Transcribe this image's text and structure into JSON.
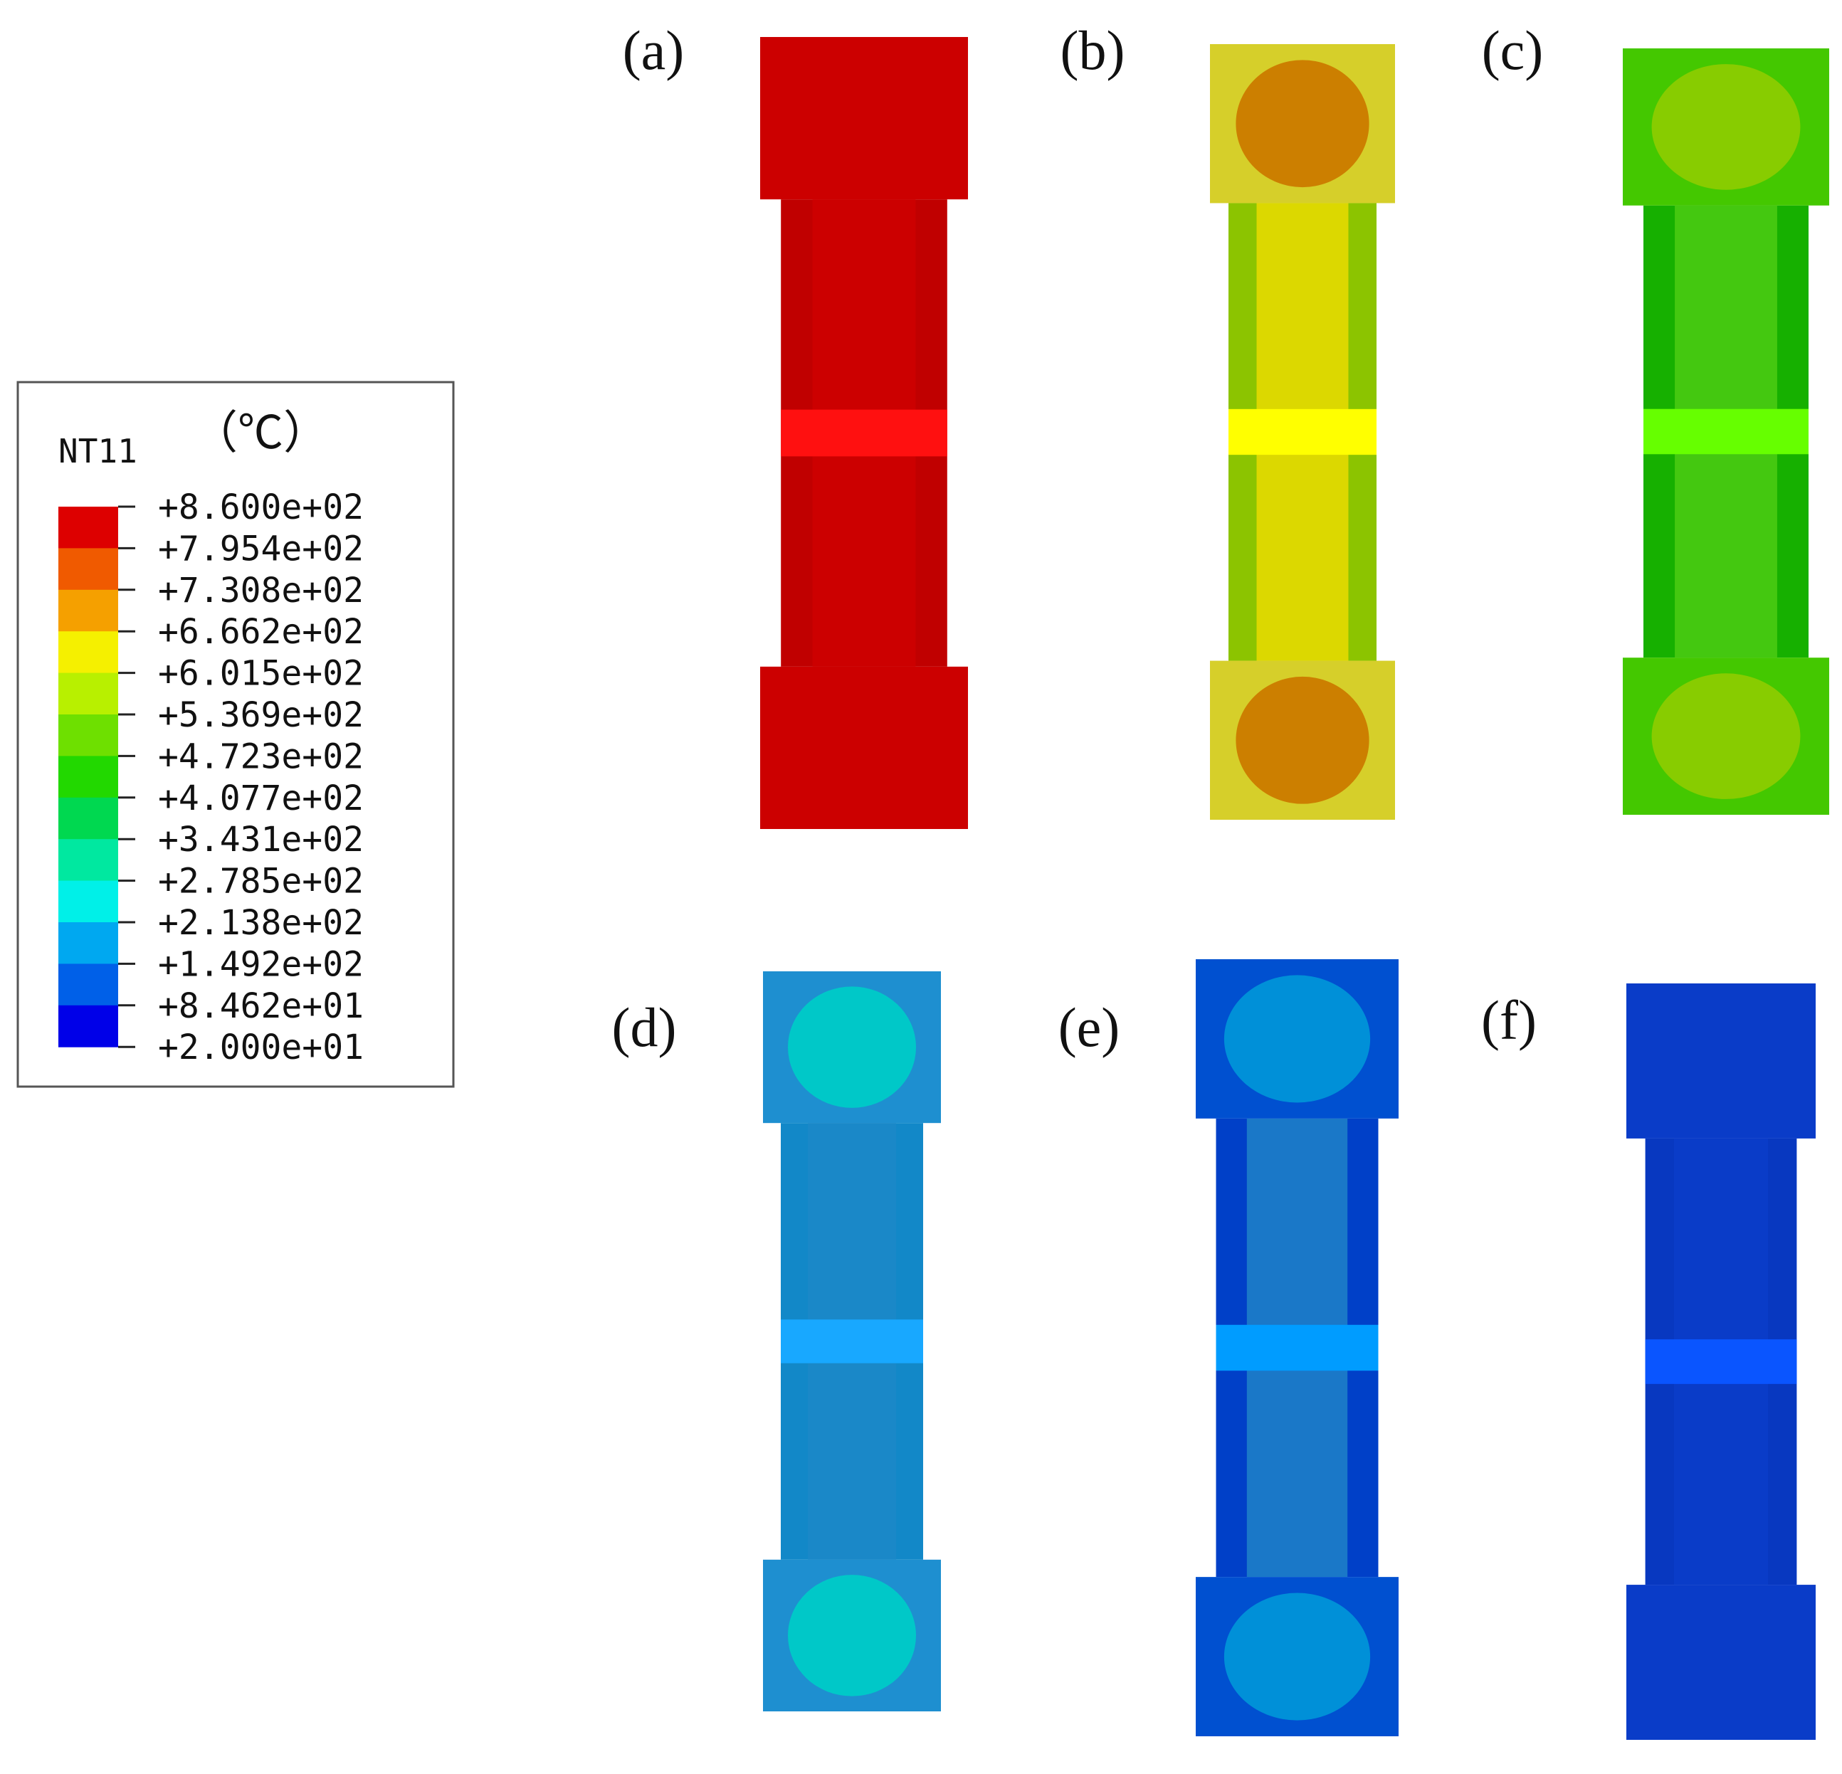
{
  "legend": {
    "variable": "NT11",
    "unit": "（℃）",
    "values": [
      "+8.600e+02",
      "+7.954e+02",
      "+7.308e+02",
      "+6.662e+02",
      "+6.015e+02",
      "+5.369e+02",
      "+4.723e+02",
      "+4.077e+02",
      "+3.431e+02",
      "+2.785e+02",
      "+2.138e+02",
      "+1.492e+02",
      "+8.462e+01",
      "+2.000e+01"
    ],
    "band_colors": [
      "#dd0000",
      "#f05a00",
      "#f5a000",
      "#f5f000",
      "#b8f000",
      "#6ee000",
      "#22d800",
      "#00d850",
      "#00e8a0",
      "#00f0e8",
      "#00a8f0",
      "#0060e8",
      "#0000e8"
    ]
  },
  "panels": [
    {
      "label": "(a)",
      "colors": {
        "grip": "#cc0000",
        "center": "#cc0000",
        "mid": "#ff1010",
        "edge": "#c00000",
        "core": "#cc0000"
      }
    },
    {
      "label": "(b)",
      "colors": {
        "grip": "#d6cf2a",
        "center": "#cc7f00",
        "mid": "#ffff00",
        "edge": "#8cc400",
        "core": "#dcd800"
      }
    },
    {
      "label": "(c)",
      "colors": {
        "grip": "#44c800",
        "center": "#88cc00",
        "mid": "#66ff00",
        "edge": "#16b000",
        "core": "#44c810"
      }
    },
    {
      "label": "(d)",
      "colors": {
        "grip": "#1e8fd0",
        "center": "#00c8c8",
        "mid": "#18a8ff",
        "edge": "#1288c8",
        "core": "#1a88c8"
      }
    },
    {
      "label": "(e)",
      "colors": {
        "grip": "#0050d0",
        "center": "#0090d8",
        "mid": "#009cff",
        "edge": "#0040c8",
        "core": "#1a78c8"
      }
    },
    {
      "label": "(f)",
      "colors": {
        "grip": "#0a3cc8",
        "center": "#0a3cc8",
        "mid": "#0a55ff",
        "edge": "#0838c0",
        "core": "#0a3cc8"
      }
    }
  ]
}
